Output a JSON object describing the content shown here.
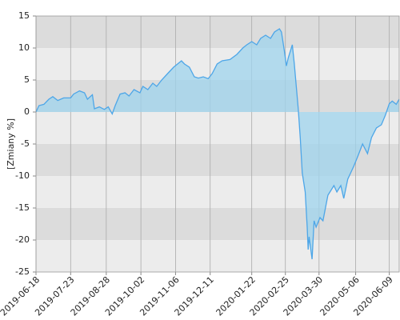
{
  "chart_data": {
    "type": "area",
    "y_label": "[Zmiany %]",
    "x": [
      "2019-06-18",
      "2019-06-21",
      "2019-06-26",
      "2019-07-01",
      "2019-07-05",
      "2019-07-10",
      "2019-07-16",
      "2019-07-23",
      "2019-07-26",
      "2019-08-01",
      "2019-08-06",
      "2019-08-09",
      "2019-08-14",
      "2019-08-16",
      "2019-08-21",
      "2019-08-26",
      "2019-08-30",
      "2019-09-03",
      "2019-09-06",
      "2019-09-11",
      "2019-09-16",
      "2019-09-20",
      "2019-09-25",
      "2019-10-01",
      "2019-10-04",
      "2019-10-09",
      "2019-10-14",
      "2019-10-18",
      "2019-10-23",
      "2019-10-29",
      "2019-11-04",
      "2019-11-08",
      "2019-11-12",
      "2019-11-15",
      "2019-11-20",
      "2019-11-25",
      "2019-11-29",
      "2019-12-04",
      "2019-12-09",
      "2019-12-13",
      "2019-12-18",
      "2019-12-23",
      "2019-12-31",
      "2020-01-07",
      "2020-01-13",
      "2020-01-17",
      "2020-01-22",
      "2020-01-27",
      "2020-01-31",
      "2020-02-05",
      "2020-02-10",
      "2020-02-14",
      "2020-02-19",
      "2020-02-21",
      "2020-02-24",
      "2020-02-26",
      "2020-02-28",
      "2020-03-03",
      "2020-03-05",
      "2020-03-09",
      "2020-03-11",
      "2020-03-13",
      "2020-03-16",
      "2020-03-18",
      "2020-03-19",
      "2020-03-20",
      "2020-03-23",
      "2020-03-25",
      "2020-03-27",
      "2020-03-31",
      "2020-04-03",
      "2020-04-08",
      "2020-04-14",
      "2020-04-17",
      "2020-04-21",
      "2020-04-24",
      "2020-04-28",
      "2020-05-04",
      "2020-05-08",
      "2020-05-13",
      "2020-05-18",
      "2020-05-22",
      "2020-05-27",
      "2020-06-01",
      "2020-06-05",
      "2020-06-09",
      "2020-06-12",
      "2020-06-16",
      "2020-06-19"
    ],
    "values": [
      0,
      1.0,
      1.2,
      2.0,
      2.4,
      1.8,
      2.2,
      2.2,
      2.8,
      3.3,
      3.0,
      2.0,
      2.7,
      0.5,
      0.8,
      0.4,
      0.8,
      -0.3,
      1.0,
      2.8,
      3.0,
      2.5,
      3.5,
      3.0,
      4.0,
      3.5,
      4.5,
      4.0,
      5.0,
      6.0,
      7.0,
      7.5,
      8.0,
      7.5,
      7.0,
      5.5,
      5.3,
      5.5,
      5.2,
      6.0,
      7.5,
      8.0,
      8.2,
      9.0,
      10.0,
      10.5,
      11.0,
      10.5,
      11.5,
      12.0,
      11.5,
      12.5,
      13.0,
      12.5,
      9.5,
      7.2,
      8.5,
      10.5,
      7.5,
      0.5,
      -4,
      -9.5,
      -12.5,
      -18,
      -21.5,
      -19.5,
      -23,
      -17,
      -18,
      -16.5,
      -17,
      -13,
      -11.5,
      -12.5,
      -11.5,
      -13.5,
      -10.5,
      -8.5,
      -7,
      -5,
      -6.5,
      -4,
      -2.5,
      -2.0,
      -0.5,
      1.3,
      1.7,
      1.2,
      2.0
    ],
    "line_color": "#4da6e8",
    "fill_color": "#9fd4ee",
    "xlim": [
      "2019-06-18",
      "2020-06-19"
    ],
    "xticks": [
      "2019-06-18",
      "2019-07-23",
      "2019-08-28",
      "2019-10-02",
      "2019-11-06",
      "2019-12-11",
      "2020-01-22",
      "2020-02-25",
      "2020-03-30",
      "2020-05-06",
      "2020-06-09"
    ],
    "ylim": [
      -25,
      15
    ],
    "yticks": [
      -25,
      -20,
      -15,
      -10,
      -5,
      0,
      5,
      10,
      15
    ],
    "grid": true
  }
}
